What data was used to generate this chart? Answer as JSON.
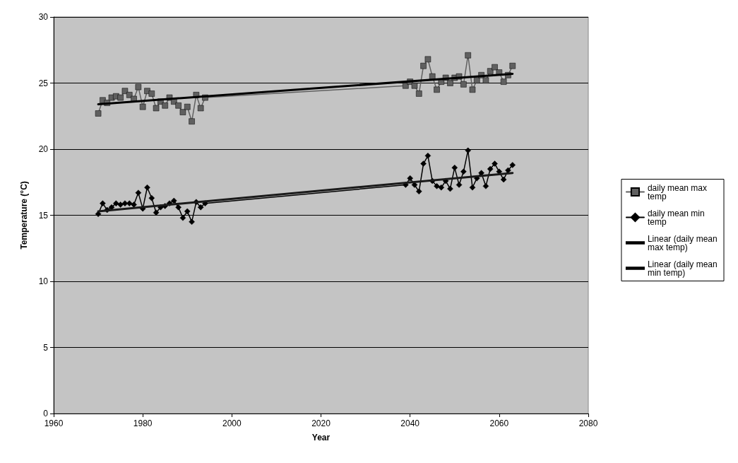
{
  "chart_data": {
    "type": "line",
    "xlabel": "Year",
    "ylabel": "Temperature (°C)",
    "xlim": [
      1960,
      2080
    ],
    "xticks": [
      1960,
      1980,
      2000,
      2020,
      2040,
      2060,
      2080
    ],
    "ylim": [
      0,
      30
    ],
    "yticks": [
      0,
      5,
      10,
      15,
      20,
      25,
      30
    ],
    "grid": "y",
    "legend": "right",
    "series": [
      {
        "name": "daily mean max temp",
        "color": "#606060",
        "marker": "square",
        "x": [
          1970,
          1971,
          1972,
          1973,
          1974,
          1975,
          1976,
          1977,
          1978,
          1979,
          1980,
          1981,
          1982,
          1983,
          1984,
          1985,
          1986,
          1987,
          1988,
          1989,
          1990,
          1991,
          1992,
          1993,
          1994,
          2039,
          2040,
          2041,
          2042,
          2043,
          2044,
          2045,
          2046,
          2047,
          2048,
          2049,
          2050,
          2051,
          2052,
          2053,
          2054,
          2055,
          2056,
          2057,
          2058,
          2059,
          2060,
          2061,
          2062,
          2063
        ],
        "values": [
          22.7,
          23.7,
          23.5,
          23.9,
          24.0,
          23.9,
          24.4,
          24.1,
          23.8,
          24.7,
          23.2,
          24.4,
          24.2,
          23.1,
          23.6,
          23.3,
          23.9,
          23.6,
          23.3,
          22.8,
          23.2,
          22.1,
          24.1,
          23.1,
          23.9,
          24.8,
          25.1,
          24.8,
          24.2,
          26.3,
          26.8,
          25.5,
          24.5,
          25.1,
          25.4,
          25.0,
          25.4,
          25.5,
          24.9,
          27.1,
          24.5,
          25.2,
          25.6,
          25.2,
          25.9,
          26.2,
          25.8,
          25.1,
          25.6,
          26.3
        ]
      },
      {
        "name": "daily mean min temp",
        "color": "#000000",
        "marker": "diamond",
        "x": [
          1970,
          1971,
          1972,
          1973,
          1974,
          1975,
          1976,
          1977,
          1978,
          1979,
          1980,
          1981,
          1982,
          1983,
          1984,
          1985,
          1986,
          1987,
          1988,
          1989,
          1990,
          1991,
          1992,
          1993,
          1994,
          2039,
          2040,
          2041,
          2042,
          2043,
          2044,
          2045,
          2046,
          2047,
          2048,
          2049,
          2050,
          2051,
          2052,
          2053,
          2054,
          2055,
          2056,
          2057,
          2058,
          2059,
          2060,
          2061,
          2062,
          2063
        ],
        "values": [
          15.1,
          15.9,
          15.4,
          15.6,
          15.9,
          15.8,
          15.9,
          15.9,
          15.8,
          16.7,
          15.5,
          17.1,
          16.3,
          15.2,
          15.6,
          15.7,
          15.9,
          16.1,
          15.6,
          14.8,
          15.3,
          14.5,
          16.0,
          15.6,
          15.9,
          17.3,
          17.8,
          17.3,
          16.8,
          18.9,
          19.5,
          17.6,
          17.2,
          17.1,
          17.6,
          17.0,
          18.6,
          17.3,
          18.3,
          19.9,
          17.1,
          17.8,
          18.2,
          17.2,
          18.5,
          18.9,
          18.3,
          17.7,
          18.4,
          18.8
        ]
      },
      {
        "name": "Linear (daily mean max temp)",
        "color": "#000000",
        "marker": "none",
        "x": [
          1970,
          2063
        ],
        "values": [
          23.4,
          25.7
        ]
      },
      {
        "name": "Linear (daily mean min temp)",
        "color": "#1a1a1a",
        "marker": "none",
        "x": [
          1970,
          2063
        ],
        "values": [
          15.3,
          18.2
        ]
      }
    ]
  }
}
